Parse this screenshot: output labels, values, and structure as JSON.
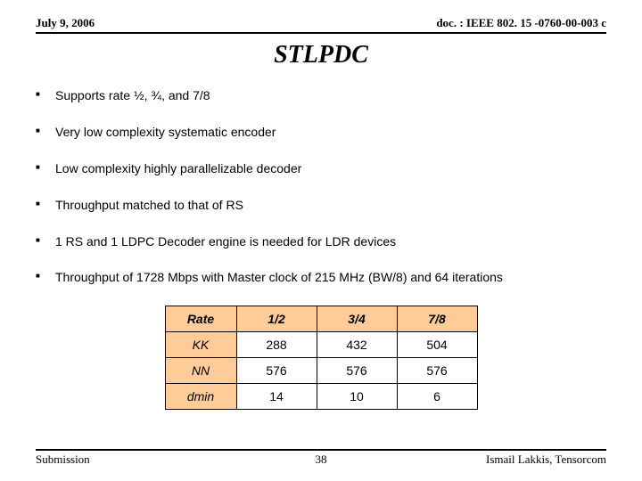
{
  "header": {
    "date": "July 9, 2006",
    "doc": "doc. : IEEE 802. 15 -0760-00-003 c"
  },
  "title": "STLPDC",
  "bullets": [
    "Supports rate ½, ¾, and 7/8",
    "Very low complexity systematic encoder",
    "Low complexity highly parallelizable decoder",
    "Throughput matched to that of RS",
    "1 RS and 1 LDPC Decoder engine is needed for LDR devices",
    "Throughput of 1728 Mbps with Master clock of 215 MHz (BW/8) and 64 iterations"
  ],
  "table": {
    "header": {
      "label": "Rate",
      "cols": [
        "1/2",
        "3/4",
        "7/8"
      ]
    },
    "rows": [
      {
        "label": "KK",
        "cells": [
          "288",
          "432",
          "504"
        ]
      },
      {
        "label": "NN",
        "cells": [
          "576",
          "576",
          "576"
        ]
      },
      {
        "label": "dmin",
        "cells": [
          "14",
          "10",
          "6"
        ]
      }
    ],
    "colors": {
      "header_bg": "#ffcc99",
      "border": "#000000"
    }
  },
  "footer": {
    "submission": "Submission",
    "page": "38",
    "author": "Ismail Lakkis, Tensorcom"
  }
}
